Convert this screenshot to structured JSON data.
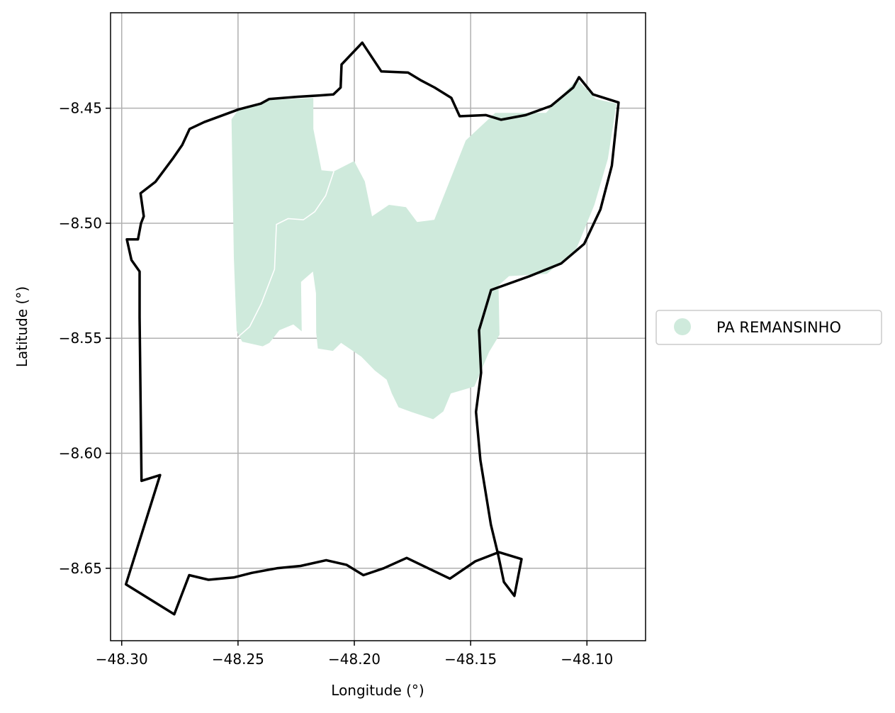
{
  "chart_data": {
    "type": "map",
    "title": "",
    "xlabel": "Longitude (°)",
    "ylabel": "Latitude (°)",
    "xlim": [
      -48.3048,
      -48.0748
    ],
    "ylim": [
      -8.6815,
      -8.4085
    ],
    "xticks": [
      -48.3,
      -48.25,
      -48.2,
      -48.15,
      -48.1
    ],
    "xtick_labels": [
      "−48.30",
      "−48.25",
      "−48.20",
      "−48.15",
      "−48.10"
    ],
    "yticks": [
      -8.45,
      -8.5,
      -8.55,
      -8.6,
      -8.65
    ],
    "ytick_labels": [
      "−8.45",
      "−8.50",
      "−8.55",
      "−8.60",
      "−8.65"
    ],
    "grid": true,
    "legend_position": "right",
    "legend": [
      {
        "label": "PA REMANSINHO",
        "color": "#cfeadc"
      }
    ],
    "layers": [
      {
        "name": "PA REMANSINHO",
        "kind": "filled-area",
        "color": "#cfeadc",
        "coords": [
          [
            -48.2528,
            -8.4548
          ],
          [
            -48.2497,
            -8.4505
          ],
          [
            -48.2366,
            -8.4465
          ],
          [
            -48.2176,
            -8.4455
          ],
          [
            -48.2176,
            -8.459
          ],
          [
            -48.2141,
            -8.477
          ],
          [
            -48.2088,
            -8.4775
          ],
          [
            -48.2001,
            -8.473
          ],
          [
            -48.1955,
            -8.4818
          ],
          [
            -48.1924,
            -8.497
          ],
          [
            -48.1851,
            -8.492
          ],
          [
            -48.1778,
            -8.493
          ],
          [
            -48.173,
            -8.4995
          ],
          [
            -48.1656,
            -8.4985
          ],
          [
            -48.1521,
            -8.464
          ],
          [
            -48.1394,
            -8.452
          ],
          [
            -48.1176,
            -8.452
          ],
          [
            -48.1043,
            -8.4375
          ],
          [
            -48.0961,
            -8.446
          ],
          [
            -48.0873,
            -8.448
          ],
          [
            -48.091,
            -8.472
          ],
          [
            -48.0968,
            -8.492
          ],
          [
            -48.1045,
            -8.511
          ],
          [
            -48.1172,
            -8.522
          ],
          [
            -48.1335,
            -8.523
          ],
          [
            -48.138,
            -8.527
          ],
          [
            -48.1376,
            -8.5485
          ],
          [
            -48.1421,
            -8.556
          ],
          [
            -48.1484,
            -8.571
          ],
          [
            -48.1585,
            -8.574
          ],
          [
            -48.1617,
            -8.5818
          ],
          [
            -48.1661,
            -8.5852
          ],
          [
            -48.1756,
            -8.582
          ],
          [
            -48.181,
            -8.58
          ],
          [
            -48.1839,
            -8.574
          ],
          [
            -48.1861,
            -8.568
          ],
          [
            -48.1912,
            -8.564
          ],
          [
            -48.197,
            -8.558
          ],
          [
            -48.2057,
            -8.552
          ],
          [
            -48.2092,
            -8.5555
          ],
          [
            -48.2157,
            -8.5545
          ],
          [
            -48.2164,
            -8.5475
          ],
          [
            -48.2165,
            -8.5305
          ],
          [
            -48.2178,
            -8.521
          ],
          [
            -48.2229,
            -8.5255
          ],
          [
            -48.2226,
            -8.547
          ],
          [
            -48.2262,
            -8.544
          ],
          [
            -48.2322,
            -8.5465
          ],
          [
            -48.2365,
            -8.552
          ],
          [
            -48.2394,
            -8.5535
          ],
          [
            -48.2482,
            -8.5515
          ],
          [
            -48.2506,
            -8.5468
          ],
          [
            -48.2518,
            -8.515
          ],
          [
            -48.2528,
            -8.4548
          ]
        ]
      },
      {
        "name": "internal boundary",
        "kind": "line",
        "color": "#ffffff",
        "coords": [
          [
            -48.2088,
            -8.4775
          ],
          [
            -48.2123,
            -8.488
          ],
          [
            -48.217,
            -8.495
          ],
          [
            -48.2219,
            -8.4985
          ],
          [
            -48.2285,
            -8.498
          ],
          [
            -48.2335,
            -8.5005
          ],
          [
            -48.2343,
            -8.52
          ],
          [
            -48.24,
            -8.535
          ],
          [
            -48.245,
            -8.545
          ],
          [
            -48.2506,
            -8.55
          ]
        ]
      },
      {
        "name": "outline",
        "kind": "line",
        "color": "#000000",
        "coords": [
          [
            -48.1966,
            -8.4215
          ],
          [
            -48.1884,
            -8.434
          ],
          [
            -48.1769,
            -8.4345
          ],
          [
            -48.1712,
            -8.438
          ],
          [
            -48.1655,
            -8.441
          ],
          [
            -48.1583,
            -8.4455
          ],
          [
            -48.1547,
            -8.4535
          ],
          [
            -48.1434,
            -8.453
          ],
          [
            -48.1369,
            -8.455
          ],
          [
            -48.1263,
            -8.453
          ],
          [
            -48.1154,
            -8.449
          ],
          [
            -48.1059,
            -8.441
          ],
          [
            -48.1034,
            -8.4365
          ],
          [
            -48.0974,
            -8.444
          ],
          [
            -48.0864,
            -8.4475
          ],
          [
            -48.0893,
            -8.475
          ],
          [
            -48.0942,
            -8.494
          ],
          [
            -48.1012,
            -8.509
          ],
          [
            -48.1111,
            -8.5175
          ],
          [
            -48.1246,
            -8.523
          ],
          [
            -48.1412,
            -8.529
          ],
          [
            -48.1464,
            -8.5465
          ],
          [
            -48.1455,
            -8.565
          ],
          [
            -48.1477,
            -8.582
          ],
          [
            -48.1458,
            -8.603
          ],
          [
            -48.1413,
            -8.631
          ],
          [
            -48.1382,
            -8.644
          ],
          [
            -48.1357,
            -8.656
          ],
          [
            -48.1312,
            -8.662
          ],
          [
            -48.1281,
            -8.646
          ],
          [
            -48.1379,
            -8.643
          ],
          [
            -48.148,
            -8.647
          ],
          [
            -48.1589,
            -8.6545
          ],
          [
            -48.1672,
            -8.6505
          ],
          [
            -48.1775,
            -8.6455
          ],
          [
            -48.1874,
            -8.65
          ],
          [
            -48.1961,
            -8.653
          ],
          [
            -48.2034,
            -8.6485
          ],
          [
            -48.2121,
            -8.6465
          ],
          [
            -48.2231,
            -8.649
          ],
          [
            -48.2333,
            -8.65
          ],
          [
            -48.2441,
            -8.652
          ],
          [
            -48.2519,
            -8.654
          ],
          [
            -48.2627,
            -8.655
          ],
          [
            -48.271,
            -8.653
          ],
          [
            -48.2744,
            -8.662
          ],
          [
            -48.2774,
            -8.67
          ],
          [
            -48.2982,
            -8.657
          ],
          [
            -48.2835,
            -8.6095
          ],
          [
            -48.2915,
            -8.612
          ],
          [
            -48.2923,
            -8.541
          ],
          [
            -48.2923,
            -8.521
          ],
          [
            -48.2958,
            -8.516
          ],
          [
            -48.2978,
            -8.507
          ],
          [
            -48.293,
            -8.507
          ],
          [
            -48.2917,
            -8.5
          ],
          [
            -48.2905,
            -8.497
          ],
          [
            -48.2919,
            -8.487
          ],
          [
            -48.2855,
            -8.482
          ],
          [
            -48.2781,
            -8.472
          ],
          [
            -48.274,
            -8.466
          ],
          [
            -48.2708,
            -8.459
          ],
          [
            -48.2645,
            -8.456
          ],
          [
            -48.2497,
            -8.4505
          ],
          [
            -48.2402,
            -8.448
          ],
          [
            -48.2366,
            -8.446
          ],
          [
            -48.2242,
            -8.445
          ],
          [
            -48.2154,
            -8.4445
          ],
          [
            -48.209,
            -8.444
          ],
          [
            -48.2059,
            -8.441
          ],
          [
            -48.2055,
            -8.431
          ],
          [
            -48.1966,
            -8.4215
          ]
        ]
      }
    ]
  }
}
